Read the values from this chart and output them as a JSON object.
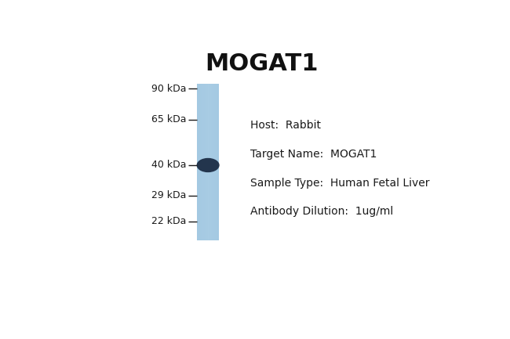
{
  "title": "MOGAT1",
  "title_fontsize": 22,
  "title_fontweight": "bold",
  "background_color": "#ffffff",
  "lane_blue_light": "#a8cce4",
  "lane_blue_mid": "#8bbcd8",
  "band_color": "#1c2d45",
  "marker_lines": [
    90,
    65,
    40,
    29,
    22
  ],
  "marker_labels": [
    "90 kDa",
    "65 kDa",
    "40 kDa",
    "29 kDa",
    "22 kDa"
  ],
  "annotations": [
    "Host:  Rabbit",
    "Target Name:  MOGAT1",
    "Sample Type:  Human Fetal Liver",
    "Antibody Dilution:  1ug/ml"
  ],
  "annotation_fontsize": 10,
  "marker_fontsize": 9
}
